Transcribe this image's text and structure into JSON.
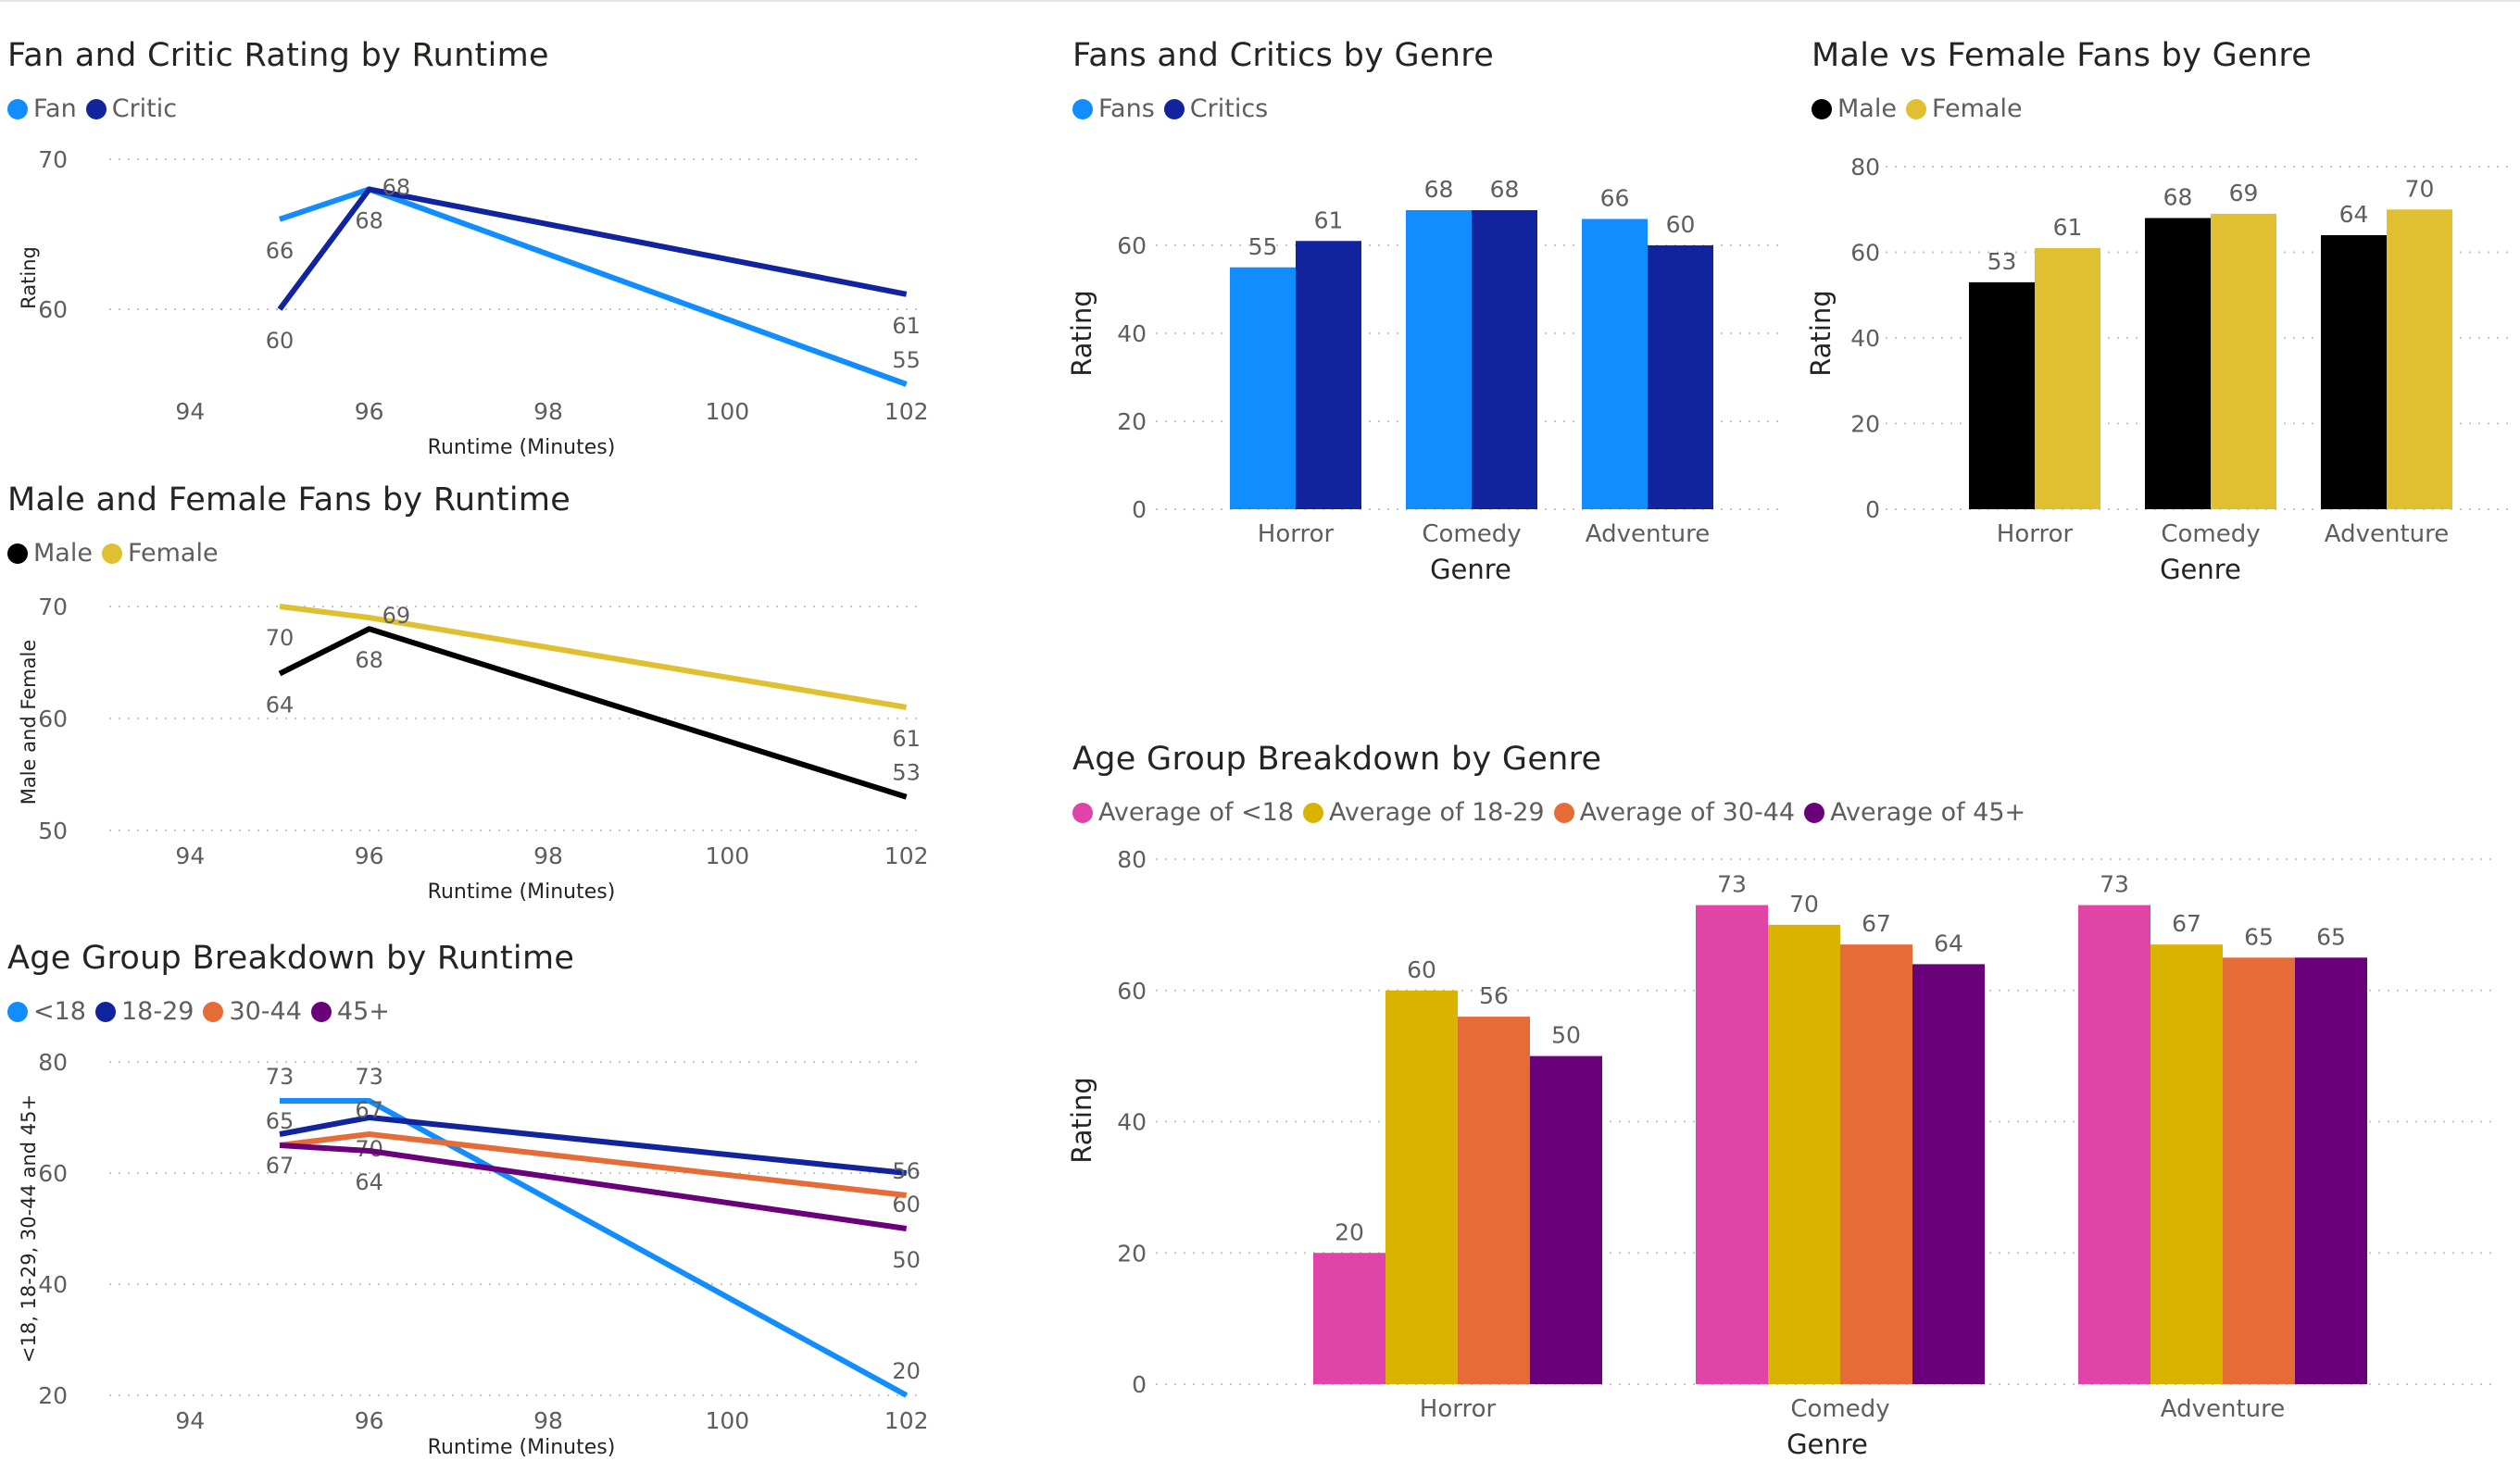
{
  "chart_data": [
    {
      "id": "fan-critic-runtime",
      "type": "line",
      "title": "Fan and Critic Rating by Runtime",
      "xlabel": "Runtime (Minutes)",
      "ylabel": "Rating",
      "xlim": [
        93.2,
        102.2
      ],
      "ylim": [
        55,
        70
      ],
      "xticks": [
        94,
        96,
        98,
        100,
        102
      ],
      "yticks": [
        60,
        70
      ],
      "grid": true,
      "series": [
        {
          "name": "Fan",
          "color": "#118DFF",
          "points": [
            [
              95,
              66
            ],
            [
              96,
              68
            ],
            [
              102,
              55
            ]
          ],
          "labels": [
            {
              "i": 0,
              "text": "66",
              "pos": "below"
            },
            {
              "i": 1,
              "text": "68",
              "pos": "below"
            },
            {
              "i": 2,
              "text": "55",
              "pos": "above"
            }
          ]
        },
        {
          "name": "Critic",
          "color": "#12239E",
          "points": [
            [
              95,
              60
            ],
            [
              96,
              68
            ],
            [
              102,
              61
            ]
          ],
          "labels": [
            {
              "i": 0,
              "text": "60",
              "pos": "below"
            },
            {
              "i": 1,
              "text": "68",
              "pos": "right"
            },
            {
              "i": 2,
              "text": "61",
              "pos": "below"
            }
          ]
        }
      ]
    },
    {
      "id": "male-female-runtime",
      "type": "line",
      "title": "Male and Female Fans by Runtime",
      "xlabel": "Runtime (Minutes)",
      "ylabel": "Male and Female",
      "xlim": [
        93.2,
        102.2
      ],
      "ylim": [
        50,
        70
      ],
      "xticks": [
        94,
        96,
        98,
        100,
        102
      ],
      "yticks": [
        50,
        60,
        70
      ],
      "grid": true,
      "series": [
        {
          "name": "Male",
          "color": "#000000",
          "points": [
            [
              95,
              64
            ],
            [
              96,
              68
            ],
            [
              102,
              53
            ]
          ],
          "labels": [
            {
              "i": 0,
              "text": "64",
              "pos": "below"
            },
            {
              "i": 1,
              "text": "68",
              "pos": "below"
            },
            {
              "i": 2,
              "text": "53",
              "pos": "above"
            }
          ]
        },
        {
          "name": "Female",
          "color": "#E0C030",
          "points": [
            [
              95,
              70
            ],
            [
              96,
              69
            ],
            [
              102,
              61
            ]
          ],
          "labels": [
            {
              "i": 0,
              "text": "70",
              "pos": "below"
            },
            {
              "i": 1,
              "text": "69",
              "pos": "right"
            },
            {
              "i": 2,
              "text": "61",
              "pos": "below"
            }
          ]
        }
      ]
    },
    {
      "id": "age-runtime",
      "type": "line",
      "title": "Age Group Breakdown by Runtime",
      "xlabel": "Runtime (Minutes)",
      "ylabel": "<18, 18-29, 30-44 and 45+",
      "xlim": [
        93.2,
        102.2
      ],
      "ylim": [
        20,
        80
      ],
      "xticks": [
        94,
        96,
        98,
        100,
        102
      ],
      "yticks": [
        20,
        40,
        60,
        80
      ],
      "grid": true,
      "series": [
        {
          "name": "<18",
          "color": "#118DFF",
          "points": [
            [
              95,
              73
            ],
            [
              96,
              73
            ],
            [
              102,
              20
            ]
          ],
          "labels": [
            {
              "i": 0,
              "text": "73",
              "pos": "above"
            },
            {
              "i": 1,
              "text": "73",
              "pos": "above"
            },
            {
              "i": 2,
              "text": "20",
              "pos": "above"
            }
          ]
        },
        {
          "name": "18-29",
          "color": "#12239E",
          "points": [
            [
              95,
              67
            ],
            [
              96,
              70
            ],
            [
              102,
              60
            ]
          ],
          "labels": [
            {
              "i": 0,
              "text": "67",
              "pos": "below"
            },
            {
              "i": 1,
              "text": "70",
              "pos": "below"
            },
            {
              "i": 2,
              "text": "60",
              "pos": "below"
            }
          ]
        },
        {
          "name": "30-44",
          "color": "#E66C37",
          "points": [
            [
              95,
              65
            ],
            [
              96,
              67
            ],
            [
              102,
              56
            ]
          ],
          "labels": [
            {
              "i": 0,
              "text": "65",
              "pos": "above"
            },
            {
              "i": 1,
              "text": "67",
              "pos": "above"
            },
            {
              "i": 2,
              "text": "56",
              "pos": "above"
            }
          ]
        },
        {
          "name": "45+",
          "color": "#6B007B",
          "points": [
            [
              95,
              65
            ],
            [
              96,
              64
            ],
            [
              102,
              50
            ]
          ],
          "labels": [
            {
              "i": 1,
              "text": "64",
              "pos": "below"
            },
            {
              "i": 2,
              "text": "50",
              "pos": "below"
            }
          ]
        }
      ]
    },
    {
      "id": "fans-critics-genre",
      "type": "bar",
      "title": "Fans and Critics by Genre",
      "xlabel": "Genre",
      "ylabel": "Rating",
      "ylim": [
        0,
        80
      ],
      "yticks": [
        0,
        20,
        40,
        60
      ],
      "grid": true,
      "categories": [
        "Horror",
        "Comedy",
        "Adventure"
      ],
      "series": [
        {
          "name": "Fans",
          "color": "#118DFF",
          "values": [
            55,
            68,
            66
          ]
        },
        {
          "name": "Critics",
          "color": "#12239E",
          "values": [
            61,
            68,
            60
          ]
        }
      ]
    },
    {
      "id": "male-female-genre",
      "type": "bar",
      "title": "Male vs Female Fans by Genre",
      "xlabel": "Genre",
      "ylabel": "Rating",
      "ylim": [
        0,
        80
      ],
      "yticks": [
        0,
        20,
        40,
        60,
        80
      ],
      "grid": true,
      "categories": [
        "Horror",
        "Comedy",
        "Adventure"
      ],
      "series": [
        {
          "name": "Male",
          "color": "#000000",
          "values": [
            53,
            68,
            64
          ]
        },
        {
          "name": "Female",
          "color": "#E0C030",
          "values": [
            61,
            69,
            70
          ]
        }
      ]
    },
    {
      "id": "age-genre",
      "type": "bar",
      "title": "Age Group Breakdown by Genre",
      "xlabel": "Genre",
      "ylabel": "Rating",
      "ylim": [
        0,
        80
      ],
      "yticks": [
        0,
        20,
        40,
        60,
        80
      ],
      "grid": true,
      "categories": [
        "Horror",
        "Comedy",
        "Adventure"
      ],
      "series": [
        {
          "name": "Average of <18",
          "color": "#E044A7",
          "values": [
            20,
            73,
            73
          ]
        },
        {
          "name": "Average of 18-29",
          "color": "#D9B300",
          "values": [
            60,
            70,
            67
          ]
        },
        {
          "name": "Average of 30-44",
          "color": "#E66C37",
          "values": [
            56,
            67,
            65
          ]
        },
        {
          "name": "Average of 45+",
          "color": "#6B007B",
          "values": [
            50,
            64,
            65
          ]
        }
      ]
    }
  ]
}
